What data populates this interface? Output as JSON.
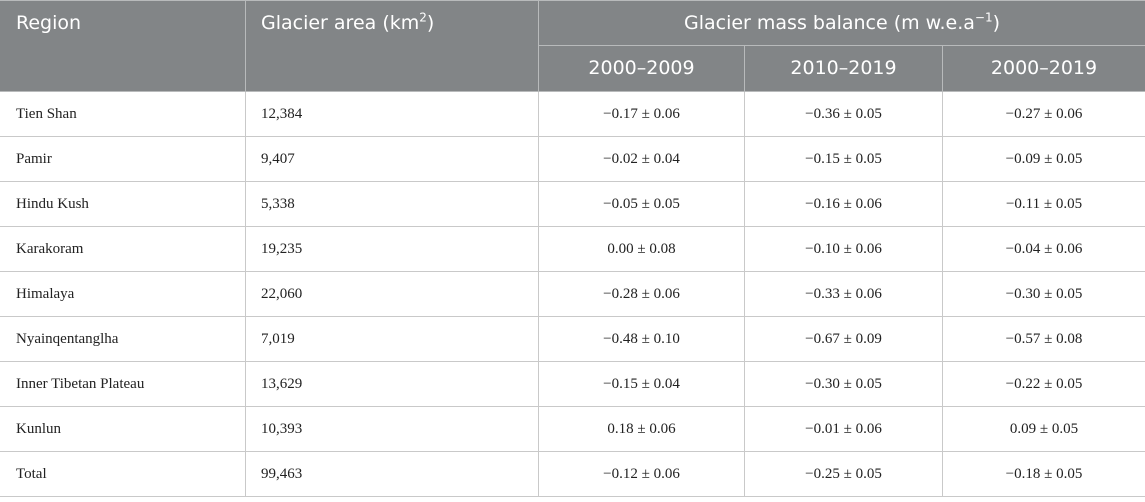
{
  "header": {
    "region": "Region",
    "area_label": "Glacier area (km",
    "area_sup": "2",
    "area_close": ")",
    "balance_label": "Glacier mass balance (m w.e.a",
    "balance_sup": "−1",
    "balance_close": ")",
    "periods": [
      "2000–2009",
      "2010–2019",
      "2000–2019"
    ]
  },
  "rows": [
    {
      "region": "Tien Shan",
      "area": "12,384",
      "p1": "−0.17 ± 0.06",
      "p2": "−0.36 ± 0.05",
      "p3": "−0.27 ± 0.06"
    },
    {
      "region": "Pamir",
      "area": "9,407",
      "p1": "−0.02 ± 0.04",
      "p2": "−0.15 ± 0.05",
      "p3": "−0.09 ± 0.05"
    },
    {
      "region": "Hindu Kush",
      "area": "5,338",
      "p1": "−0.05 ± 0.05",
      "p2": "−0.16 ± 0.06",
      "p3": "−0.11 ± 0.05"
    },
    {
      "region": "Karakoram",
      "area": "19,235",
      "p1": "0.00 ± 0.08",
      "p2": "−0.10 ± 0.06",
      "p3": "−0.04 ± 0.06"
    },
    {
      "region": "Himalaya",
      "area": "22,060",
      "p1": "−0.28 ± 0.06",
      "p2": "−0.33 ± 0.06",
      "p3": "−0.30 ± 0.05"
    },
    {
      "region": "Nyainqentanglha",
      "area": "7,019",
      "p1": "−0.48 ± 0.10",
      "p2": "−0.67 ± 0.09",
      "p3": "−0.57 ± 0.08"
    },
    {
      "region": "Inner Tibetan Plateau",
      "area": "13,629",
      "p1": "−0.15 ± 0.04",
      "p2": "−0.30 ± 0.05",
      "p3": "−0.22 ± 0.05"
    },
    {
      "region": "Kunlun",
      "area": "10,393",
      "p1": "0.18 ± 0.06",
      "p2": "−0.01 ± 0.06",
      "p3": "0.09 ± 0.05"
    },
    {
      "region": "Total",
      "area": "99,463",
      "p1": "−0.12 ± 0.06",
      "p2": "−0.25 ± 0.05",
      "p3": "−0.18 ± 0.05"
    }
  ]
}
